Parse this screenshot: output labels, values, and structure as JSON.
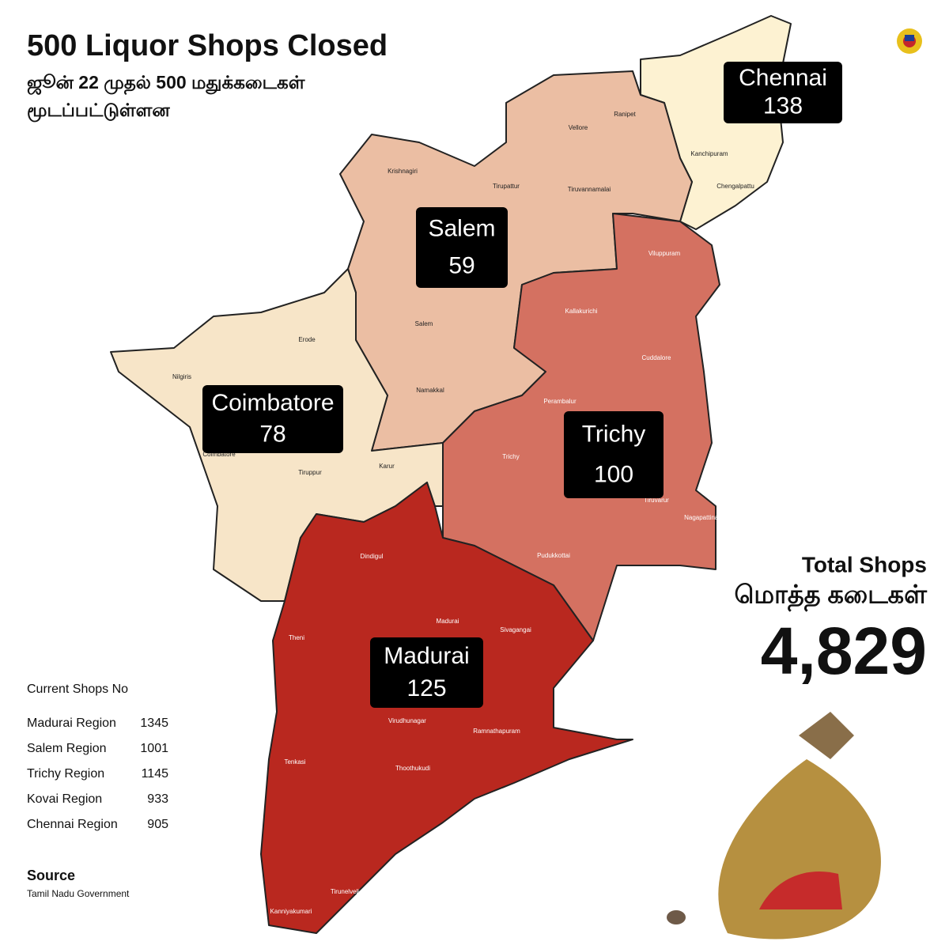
{
  "header": {
    "title": "500 Liquor Shops Closed",
    "subtitle_line1": "ஜூன் 22 முதல் 500 மதுக்கடைகள்",
    "subtitle_line2": "மூடப்பட்டுள்ளன"
  },
  "regions": [
    {
      "name": "Chennai",
      "closed": 138,
      "color": "#fdf2d2",
      "districts": [
        "Kanchipuram",
        "Chengalpattu"
      ]
    },
    {
      "name": "Salem",
      "closed": 59,
      "color": "#ebbea3",
      "districts": [
        "Krishnagiri",
        "Vellore",
        "Ranipet",
        "Tirupattur",
        "Tiruvannamalai",
        "Salem",
        "Namakkal"
      ]
    },
    {
      "name": "Coimbatore",
      "closed": 78,
      "color": "#f7e5c8",
      "districts": [
        "Erode",
        "Nilgiris",
        "Coimbatore",
        "Tiruppur",
        "Karur"
      ]
    },
    {
      "name": "Trichy",
      "closed": 100,
      "color": "#d47161",
      "districts": [
        "Viluppuram",
        "Kallakurichi",
        "Cuddalore",
        "Perambalur",
        "Trichy",
        "Tiruvarur",
        "Nagapattinam",
        "Pudukkottai"
      ]
    },
    {
      "name": "Madurai",
      "closed": 125,
      "color": "#b9281f",
      "districts": [
        "Dindigul",
        "Theni",
        "Madurai",
        "Sivagangai",
        "Virudhunagar",
        "Ramnathapuram",
        "Tenkasi",
        "Thoothukudi",
        "Tirunelveli",
        "Kanniyakumari"
      ]
    }
  ],
  "total": {
    "label": "Total Shops",
    "label_tamil": "மொத்த கடைகள்",
    "value": "4,829"
  },
  "current_shops": {
    "title": "Current Shops No",
    "rows": [
      {
        "region": "Madurai Region",
        "count": 1345
      },
      {
        "region": "Salem Region",
        "count": 1001
      },
      {
        "region": "Trichy Region",
        "count": 1145
      },
      {
        "region": "Kovai Region",
        "count": 933
      },
      {
        "region": "Chennai Region",
        "count": 905
      }
    ]
  },
  "source": {
    "title": "Source",
    "text": "Tamil Nadu Government"
  }
}
